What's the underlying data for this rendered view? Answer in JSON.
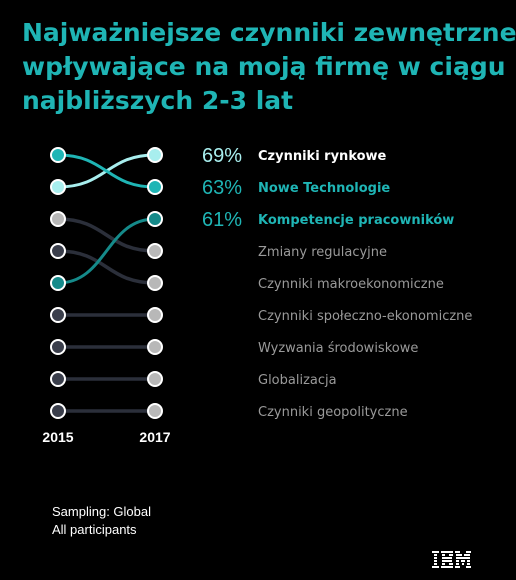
{
  "title_lines": [
    "Najważniejsze czynniki zewnętrzne",
    "wpływające na moją firmę w ciągu",
    "najbliższych 2-3 lat"
  ],
  "chart_data": {
    "type": "slope-ranking",
    "title": "Najważniejsze czynniki zewnętrzne wpływające na moją firmę w ciągu najbliższych 2-3 lat",
    "x_labels": [
      "2015",
      "2017"
    ],
    "items": [
      {
        "label": "Czynniki rynkowe",
        "rank_2015": 2,
        "rank_2017": 1,
        "value_2017": "69%",
        "color": "#a8eeee",
        "highlight": true,
        "label_color": "#ffffff"
      },
      {
        "label": "Nowe Technologie",
        "rank_2015": 1,
        "rank_2017": 2,
        "value_2017": "63%",
        "color": "#1fb5b5",
        "highlight": true,
        "label_color": "#1fb5b5"
      },
      {
        "label": "Kompetencje pracowników",
        "rank_2015": 5,
        "rank_2017": 3,
        "value_2017": "61%",
        "color": "#158a8a",
        "highlight": true,
        "label_color": "#1fb5b5"
      },
      {
        "label": "Zmiany regulacyjne",
        "rank_2015": 3,
        "rank_2017": 4,
        "value_2017": "",
        "color": "#b8b8b8",
        "highlight": false
      },
      {
        "label": "Czynniki makroekonomiczne",
        "rank_2015": 4,
        "rank_2017": 5,
        "value_2017": "",
        "color": "#b8b8b8",
        "highlight": false
      },
      {
        "label": "Czynniki społeczno-ekonomiczne",
        "rank_2015": 6,
        "rank_2017": 6,
        "value_2017": "",
        "color": "#b8b8b8",
        "highlight": false
      },
      {
        "label": "Wyzwania środowiskowe",
        "rank_2015": 7,
        "rank_2017": 7,
        "value_2017": "",
        "color": "#b8b8b8",
        "highlight": false
      },
      {
        "label": "Globalizacja",
        "rank_2015": 8,
        "rank_2017": 8,
        "value_2017": "",
        "color": "#b8b8b8",
        "highlight": false
      },
      {
        "label": "Czynniki geopolityczne",
        "rank_2015": 9,
        "rank_2017": 9,
        "value_2017": "",
        "color": "#b8b8b8",
        "highlight": false
      }
    ]
  },
  "colors": {
    "background": "#000000",
    "title": "#1fb5b5",
    "gray_line": "#2b2f3a",
    "gray_label": "#9a9a9a",
    "dot_2015_fill": "#3a3e4b"
  },
  "footer": {
    "line1": "Sampling: Global",
    "line2": "All participants"
  },
  "logo": "IBM"
}
